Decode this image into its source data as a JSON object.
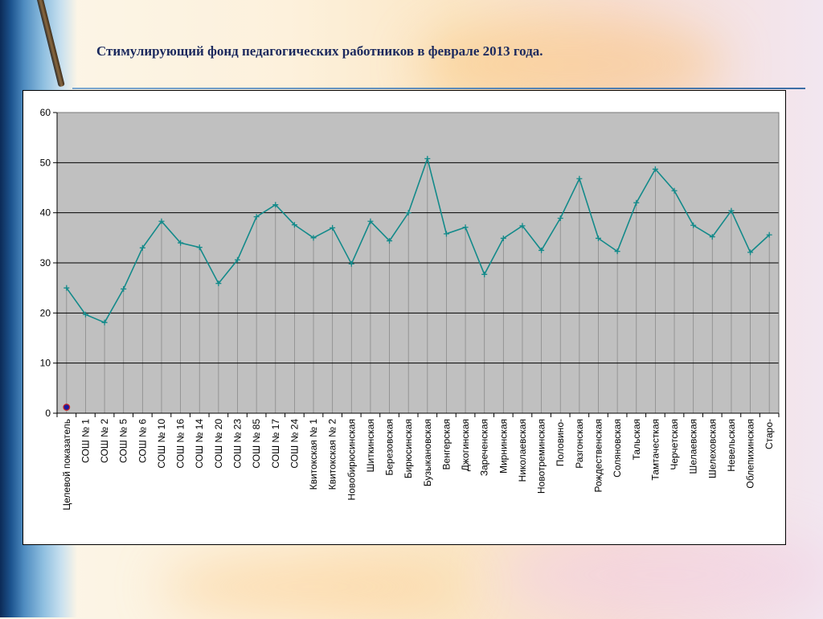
{
  "slide": {
    "title": "Стимулирующий фонд педагогических работников в феврале 2013 года."
  },
  "colors": {
    "plot_background": "#c0c0c0",
    "series_line": "#138a8a",
    "target_marker": "#1a1aa0",
    "target_marker_outline": "#cc2222",
    "grid": "#000000"
  },
  "chart_data": {
    "type": "line",
    "title": "",
    "xlabel": "",
    "ylabel": "",
    "ylim": [
      0,
      60
    ],
    "yticks": [
      0,
      10,
      20,
      30,
      40,
      50,
      60
    ],
    "grid": true,
    "legend": "none",
    "categories": [
      "Целевой показатель",
      "СОШ № 1",
      "СОШ № 2",
      "СОШ № 5",
      "СОШ № 6",
      "СОШ № 10",
      "СОШ № 16",
      "СОШ № 14",
      "СОШ № 20",
      "СОШ № 23",
      "СОШ № 85",
      "СОШ № 17",
      "СОШ № 24",
      "Квитокская № 1",
      "Квитокская  № 2",
      "Новобирюсинская",
      "Шиткинская",
      "Березовская",
      "Бирюсинская",
      "Бузыкановская",
      "Венгерская",
      "Джогинская",
      "Зареченская",
      "Мирнинская",
      "Николаевская",
      "Новотреминская",
      "Половино-",
      "Разгонская",
      "Рождественская",
      "Соляновская",
      "Тальская",
      "Тамтачесткая",
      "Черчетская",
      "Шелаевская",
      "Шелеховская",
      "Невельская",
      "Облепихинская",
      "Старо-"
    ],
    "series": [
      {
        "values": [
          25,
          19.7,
          18.1,
          24.8,
          33,
          38.3,
          34,
          33.1,
          25.9,
          30.6,
          39.2,
          41.6,
          37.6,
          35,
          37,
          29.8,
          38.3,
          34.4,
          40,
          50.8,
          35.8,
          37.1,
          27.7,
          34.9,
          37.4,
          32.5,
          38.9,
          46.8,
          34.9,
          32.3,
          42,
          48.7,
          44.4,
          37.5,
          35.2,
          40.4,
          32.1,
          35.6
        ]
      }
    ],
    "markers": [
      {
        "category": "Целевой показатель",
        "value": 1.2
      }
    ]
  }
}
